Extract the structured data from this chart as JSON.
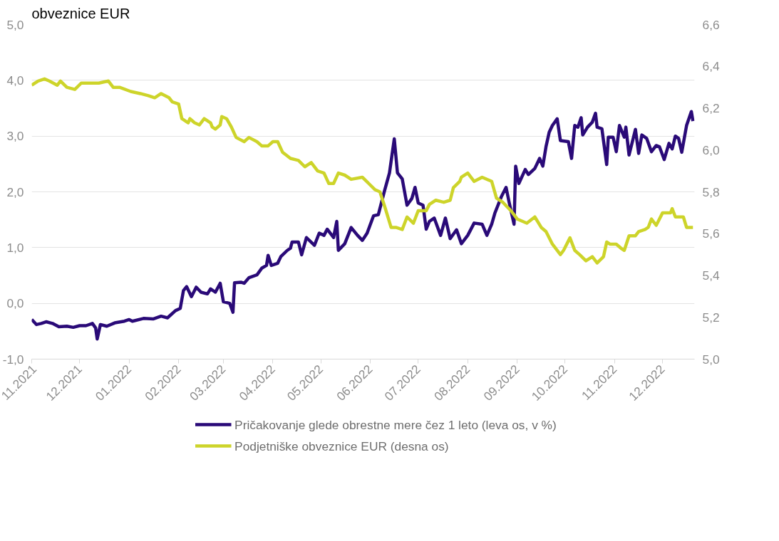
{
  "chart_data": {
    "type": "line",
    "title": "obveznice EUR",
    "xlim": [
      "2021-11-01",
      "2022-12-21"
    ],
    "xticks": [
      {
        "value": "2021-11-01",
        "label": "11.2021"
      },
      {
        "value": "2021-12-01",
        "label": "12.2021"
      },
      {
        "value": "2022-01-01",
        "label": "01.2022"
      },
      {
        "value": "2022-02-01",
        "label": "02.2022"
      },
      {
        "value": "2022-03-01",
        "label": "03.2022"
      },
      {
        "value": "2022-04-01",
        "label": "04.2022"
      },
      {
        "value": "2022-05-01",
        "label": "05.2022"
      },
      {
        "value": "2022-06-01",
        "label": "06.2022"
      },
      {
        "value": "2022-07-01",
        "label": "07.2022"
      },
      {
        "value": "2022-08-01",
        "label": "08.2022"
      },
      {
        "value": "2022-09-01",
        "label": "09.2022"
      },
      {
        "value": "2022-10-01",
        "label": "10.2022"
      },
      {
        "value": "2022-11-01",
        "label": "11.2022"
      },
      {
        "value": "2022-12-01",
        "label": "12.2022"
      }
    ],
    "ylim": [
      -1,
      5
    ],
    "yticks": [
      {
        "value": -1,
        "label": "-1,0"
      },
      {
        "value": 0,
        "label": "0,0"
      },
      {
        "value": 1,
        "label": "1,0"
      },
      {
        "value": 2,
        "label": "2,0"
      },
      {
        "value": 3,
        "label": "3,0"
      },
      {
        "value": 4,
        "label": "4,0"
      },
      {
        "value": 5,
        "label": "5,0"
      }
    ],
    "y2lim": [
      5.0,
      6.6
    ],
    "y2ticks": [
      {
        "value": 5.0,
        "label": "5,0"
      },
      {
        "value": 5.2,
        "label": "5,2"
      },
      {
        "value": 5.4,
        "label": "5,4"
      },
      {
        "value": 5.6,
        "label": "5,6"
      },
      {
        "value": 5.8,
        "label": "5,8"
      },
      {
        "value": 6.0,
        "label": "6,0"
      },
      {
        "value": 6.2,
        "label": "6,2"
      },
      {
        "value": 6.4,
        "label": "6,4"
      },
      {
        "value": 6.6,
        "label": "6,6"
      }
    ],
    "grid": "y",
    "legend": "bottom",
    "marker": "none",
    "line_style": "solid",
    "series": [
      {
        "name": "Pričakovanje glede obrestne mere čez 1 leto (leva os, v %)",
        "color": "#2a0a78",
        "x": [
          "2021-11-01",
          "2021-11-04",
          "2021-11-07",
          "2021-11-10",
          "2021-11-14",
          "2021-11-18",
          "2021-11-23",
          "2021-11-27",
          "2021-12-01",
          "2021-12-05",
          "2021-12-09",
          "2021-12-11",
          "2021-12-12",
          "2021-12-14",
          "2021-12-18",
          "2021-12-23",
          "2021-12-29",
          "2022-01-01",
          "2022-01-03",
          "2022-01-10",
          "2022-01-16",
          "2022-01-21",
          "2022-01-25",
          "2022-01-30",
          "2022-02-02",
          "2022-02-04",
          "2022-02-06",
          "2022-02-09",
          "2022-02-12",
          "2022-02-15",
          "2022-02-19",
          "2022-02-21",
          "2022-02-24",
          "2022-02-27",
          "2022-03-01",
          "2022-03-05",
          "2022-03-07",
          "2022-03-08",
          "2022-03-12",
          "2022-03-14",
          "2022-03-17",
          "2022-03-22",
          "2022-03-25",
          "2022-03-28",
          "2022-03-29",
          "2022-03-31",
          "2022-04-04",
          "2022-04-06",
          "2022-04-10",
          "2022-04-12",
          "2022-04-13",
          "2022-04-17",
          "2022-04-19",
          "2022-04-22",
          "2022-04-27",
          "2022-04-30",
          "2022-05-03",
          "2022-05-05",
          "2022-05-09",
          "2022-05-11",
          "2022-05-12",
          "2022-05-16",
          "2022-05-20",
          "2022-05-24",
          "2022-05-27",
          "2022-05-30",
          "2022-06-03",
          "2022-06-06",
          "2022-06-10",
          "2022-06-13",
          "2022-06-16",
          "2022-06-18",
          "2022-06-21",
          "2022-06-24",
          "2022-06-27",
          "2022-06-29",
          "2022-07-01",
          "2022-07-04",
          "2022-07-06",
          "2022-07-08",
          "2022-07-11",
          "2022-07-15",
          "2022-07-18",
          "2022-07-21",
          "2022-07-25",
          "2022-07-28",
          "2022-08-01",
          "2022-08-05",
          "2022-08-10",
          "2022-08-13",
          "2022-08-16",
          "2022-08-18",
          "2022-08-22",
          "2022-08-25",
          "2022-08-27",
          "2022-08-30",
          "2022-08-31",
          "2022-09-02",
          "2022-09-06",
          "2022-09-08",
          "2022-09-12",
          "2022-09-15",
          "2022-09-17",
          "2022-09-19",
          "2022-09-21",
          "2022-09-23",
          "2022-09-26",
          "2022-09-28",
          "2022-10-03",
          "2022-10-05",
          "2022-10-07",
          "2022-10-09",
          "2022-10-11",
          "2022-10-12",
          "2022-10-15",
          "2022-10-18",
          "2022-10-20",
          "2022-10-21",
          "2022-10-24",
          "2022-10-27",
          "2022-10-28",
          "2022-10-31",
          "2022-11-02",
          "2022-11-04",
          "2022-11-07",
          "2022-11-08",
          "2022-11-10",
          "2022-11-14",
          "2022-11-16",
          "2022-11-18",
          "2022-11-21",
          "2022-11-24",
          "2022-11-27",
          "2022-11-29",
          "2022-12-02",
          "2022-12-05",
          "2022-12-07",
          "2022-12-09",
          "2022-12-11",
          "2022-12-13",
          "2022-12-16",
          "2022-12-19",
          "2022-12-20"
        ],
        "values": [
          -0.29,
          -0.38,
          -0.36,
          -0.33,
          -0.36,
          -0.42,
          -0.41,
          -0.43,
          -0.4,
          -0.4,
          -0.36,
          -0.44,
          -0.64,
          -0.38,
          -0.41,
          -0.35,
          -0.32,
          -0.29,
          -0.32,
          -0.27,
          -0.28,
          -0.23,
          -0.26,
          -0.13,
          -0.09,
          0.23,
          0.3,
          0.12,
          0.29,
          0.2,
          0.17,
          0.26,
          0.2,
          0.36,
          0.03,
          0.0,
          -0.16,
          0.37,
          0.38,
          0.36,
          0.46,
          0.51,
          0.63,
          0.68,
          0.86,
          0.68,
          0.72,
          0.84,
          0.95,
          0.99,
          1.1,
          1.1,
          0.87,
          1.18,
          1.04,
          1.26,
          1.22,
          1.33,
          1.18,
          1.47,
          0.95,
          1.07,
          1.36,
          1.22,
          1.13,
          1.26,
          1.57,
          1.59,
          2.03,
          2.34,
          2.95,
          2.34,
          2.23,
          1.76,
          1.88,
          2.08,
          1.8,
          1.76,
          1.33,
          1.47,
          1.53,
          1.22,
          1.53,
          1.16,
          1.32,
          1.07,
          1.22,
          1.44,
          1.42,
          1.22,
          1.42,
          1.62,
          1.91,
          2.08,
          1.8,
          1.42,
          2.46,
          2.15,
          2.4,
          2.31,
          2.42,
          2.6,
          2.46,
          2.81,
          3.07,
          3.19,
          3.31,
          2.92,
          2.9,
          2.6,
          3.19,
          3.16,
          3.33,
          3.02,
          3.16,
          3.25,
          3.41,
          3.16,
          3.13,
          2.49,
          2.98,
          2.98,
          2.72,
          3.19,
          2.98,
          3.16,
          2.66,
          3.12,
          2.69,
          3.02,
          2.96,
          2.72,
          2.83,
          2.81,
          2.58,
          2.87,
          2.77,
          3.0,
          2.96,
          2.71,
          3.19,
          3.44,
          3.27
        ]
      },
      {
        "name": "Podjetniške obveznice EUR (desna os)",
        "color": "#cdd42a",
        "axis": "y2",
        "x": [
          "2021-11-01",
          "2021-11-05",
          "2021-11-09",
          "2021-11-12",
          "2021-11-17",
          "2021-11-19",
          "2021-11-23",
          "2021-11-28",
          "2021-12-02",
          "2021-12-08",
          "2021-12-13",
          "2021-12-19",
          "2021-12-22",
          "2021-12-26",
          "2022-01-02",
          "2022-01-08",
          "2022-01-13",
          "2022-01-17",
          "2022-01-21",
          "2022-01-26",
          "2022-01-28",
          "2022-02-01",
          "2022-02-03",
          "2022-02-07",
          "2022-02-08",
          "2022-02-11",
          "2022-02-14",
          "2022-02-17",
          "2022-02-21",
          "2022-02-22",
          "2022-02-24",
          "2022-02-27",
          "2022-02-28",
          "2022-03-03",
          "2022-03-06",
          "2022-03-09",
          "2022-03-14",
          "2022-03-17",
          "2022-03-22",
          "2022-03-25",
          "2022-03-29",
          "2022-04-01",
          "2022-04-04",
          "2022-04-07",
          "2022-04-12",
          "2022-04-17",
          "2022-04-21",
          "2022-04-25",
          "2022-04-29",
          "2022-05-03",
          "2022-05-06",
          "2022-05-09",
          "2022-05-12",
          "2022-05-16",
          "2022-05-20",
          "2022-05-27",
          "2022-05-31",
          "2022-06-04",
          "2022-06-07",
          "2022-06-10",
          "2022-06-14",
          "2022-06-17",
          "2022-06-21",
          "2022-06-24",
          "2022-06-28",
          "2022-07-01",
          "2022-07-06",
          "2022-07-08",
          "2022-07-12",
          "2022-07-17",
          "2022-07-21",
          "2022-07-23",
          "2022-07-27",
          "2022-07-28",
          "2022-08-01",
          "2022-08-04",
          "2022-08-05",
          "2022-08-10",
          "2022-08-16",
          "2022-08-19",
          "2022-08-23",
          "2022-08-28",
          "2022-09-01",
          "2022-09-07",
          "2022-09-12",
          "2022-09-16",
          "2022-09-19",
          "2022-09-23",
          "2022-09-28",
          "2022-09-30",
          "2022-10-04",
          "2022-10-07",
          "2022-10-10",
          "2022-10-14",
          "2022-10-18",
          "2022-10-21",
          "2022-10-25",
          "2022-10-27",
          "2022-10-29",
          "2022-11-02",
          "2022-11-05",
          "2022-11-07",
          "2022-11-10",
          "2022-11-14",
          "2022-11-16",
          "2022-11-20",
          "2022-11-22",
          "2022-11-24",
          "2022-11-27",
          "2022-11-29",
          "2022-12-01",
          "2022-12-06",
          "2022-12-07",
          "2022-12-09",
          "2022-12-14",
          "2022-12-16",
          "2022-12-20"
        ],
        "values": [
          6.31,
          6.33,
          6.34,
          6.33,
          6.31,
          6.33,
          6.3,
          6.29,
          6.32,
          6.32,
          6.32,
          6.33,
          6.3,
          6.3,
          6.28,
          6.27,
          6.26,
          6.25,
          6.27,
          6.25,
          6.23,
          6.22,
          6.15,
          6.13,
          6.15,
          6.13,
          6.12,
          6.15,
          6.13,
          6.11,
          6.1,
          6.12,
          6.16,
          6.15,
          6.11,
          6.06,
          6.04,
          6.06,
          6.04,
          6.02,
          6.02,
          6.04,
          6.04,
          5.99,
          5.96,
          5.95,
          5.92,
          5.94,
          5.9,
          5.89,
          5.84,
          5.84,
          5.89,
          5.88,
          5.86,
          5.87,
          5.84,
          5.81,
          5.8,
          5.73,
          5.63,
          5.63,
          5.62,
          5.68,
          5.65,
          5.71,
          5.71,
          5.74,
          5.76,
          5.75,
          5.76,
          5.82,
          5.85,
          5.87,
          5.89,
          5.86,
          5.85,
          5.87,
          5.85,
          5.77,
          5.75,
          5.71,
          5.67,
          5.65,
          5.68,
          5.63,
          5.61,
          5.55,
          5.5,
          5.52,
          5.58,
          5.52,
          5.5,
          5.47,
          5.49,
          5.46,
          5.49,
          5.56,
          5.55,
          5.55,
          5.53,
          5.52,
          5.59,
          5.59,
          5.61,
          5.62,
          5.63,
          5.67,
          5.64,
          5.67,
          5.7,
          5.7,
          5.72,
          5.68,
          5.68,
          5.63,
          5.63
        ]
      }
    ]
  }
}
